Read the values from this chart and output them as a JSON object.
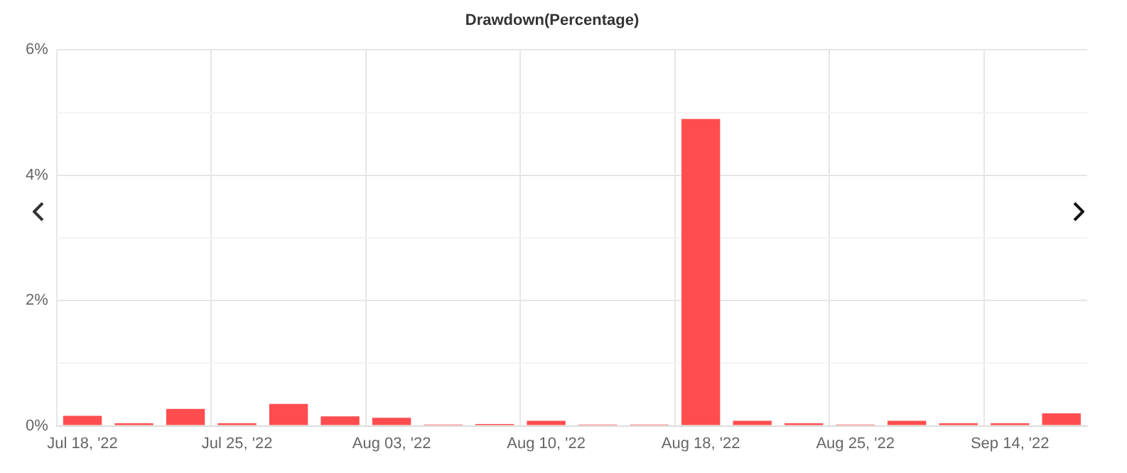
{
  "chart_data": {
    "type": "bar",
    "title": "Drawdown(Percentage)",
    "categories": [
      "Jul 18, '22",
      null,
      null,
      "Jul 25, '22",
      null,
      null,
      "Aug 03, '22",
      null,
      null,
      "Aug 10, '22",
      null,
      null,
      "Aug 18, '22",
      null,
      null,
      "Aug 25, '22",
      null,
      null,
      "Sep 14, '22",
      null
    ],
    "values": [
      0.16,
      0.04,
      0.27,
      0.04,
      0.35,
      0.15,
      0.13,
      0.02,
      0.03,
      0.08,
      0.02,
      0.02,
      4.9,
      0.08,
      0.04,
      0.02,
      0.08,
      0.04,
      0.04,
      0.2
    ],
    "color": "#ff4d4f",
    "ylim": [
      0,
      6
    ],
    "yticks": [
      {
        "value": 0,
        "label": "0%"
      },
      {
        "value": 1,
        "label": null
      },
      {
        "value": 2,
        "label": "2%"
      },
      {
        "value": 3,
        "label": null
      },
      {
        "value": 4,
        "label": "4%"
      },
      {
        "value": 5,
        "label": null
      },
      {
        "value": 6,
        "label": "6%"
      }
    ],
    "grid": true,
    "legend": false
  }
}
